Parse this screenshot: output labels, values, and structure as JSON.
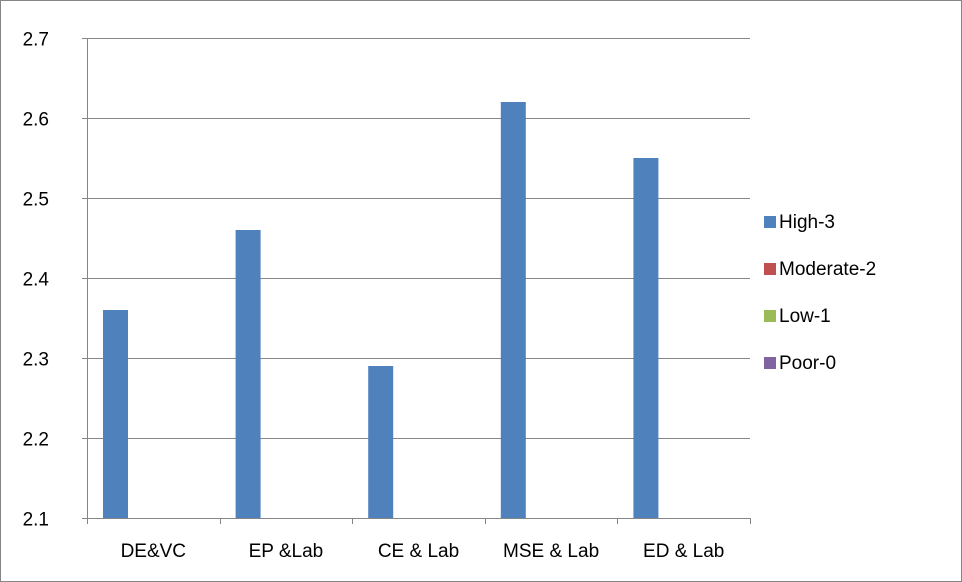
{
  "chart_data": {
    "type": "bar",
    "categories": [
      "DE&VC",
      "EP &Lab",
      "CE & Lab",
      "MSE & Lab",
      "ED & Lab"
    ],
    "series": [
      {
        "name": "High-3",
        "color": "#4F81BD",
        "values": [
          2.36,
          2.46,
          2.29,
          2.62,
          2.55
        ]
      },
      {
        "name": "Moderate-2",
        "color": "#C0504D",
        "values": [
          null,
          null,
          null,
          null,
          null
        ]
      },
      {
        "name": "Low-1",
        "color": "#9BBB59",
        "values": [
          null,
          null,
          null,
          null,
          null
        ]
      },
      {
        "name": "Poor-0",
        "color": "#8064A2",
        "values": [
          null,
          null,
          null,
          null,
          null
        ]
      }
    ],
    "title": "",
    "xlabel": "",
    "ylabel": "",
    "ylim": [
      2.1,
      2.7
    ],
    "yticks": [
      "2.1",
      "2.2",
      "2.3",
      "2.4",
      "2.5",
      "2.6",
      "2.7"
    ],
    "grid": true,
    "legend_position": "right",
    "gridline_color": "#868686",
    "axis_color": "#868686"
  }
}
